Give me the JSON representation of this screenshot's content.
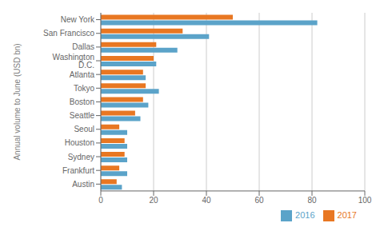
{
  "chart_data": {
    "type": "bar",
    "orientation": "horizontal",
    "categories": [
      "New York",
      "San Francisco",
      "Dallas",
      "Washington D.C.",
      "Atlanta",
      "Tokyo",
      "Boston",
      "Seattle",
      "Seoul",
      "Houston",
      "Sydney",
      "Frankfurt",
      "Austin"
    ],
    "series": [
      {
        "name": "2017",
        "color": "#E87722",
        "values": [
          50,
          31,
          21,
          20,
          16,
          17,
          16,
          13,
          7,
          9,
          9,
          7,
          6
        ]
      },
      {
        "name": "2016",
        "color": "#5BA3C9",
        "values": [
          82,
          41,
          29,
          21,
          17,
          22,
          18,
          15,
          10,
          10,
          10,
          10,
          8
        ]
      }
    ],
    "ylabel": "Annual volume to June (USD bn)",
    "xlim": [
      0,
      100
    ],
    "xticks": [
      0,
      20,
      40,
      60,
      80,
      100
    ],
    "grid": true,
    "legend": "lower right"
  }
}
